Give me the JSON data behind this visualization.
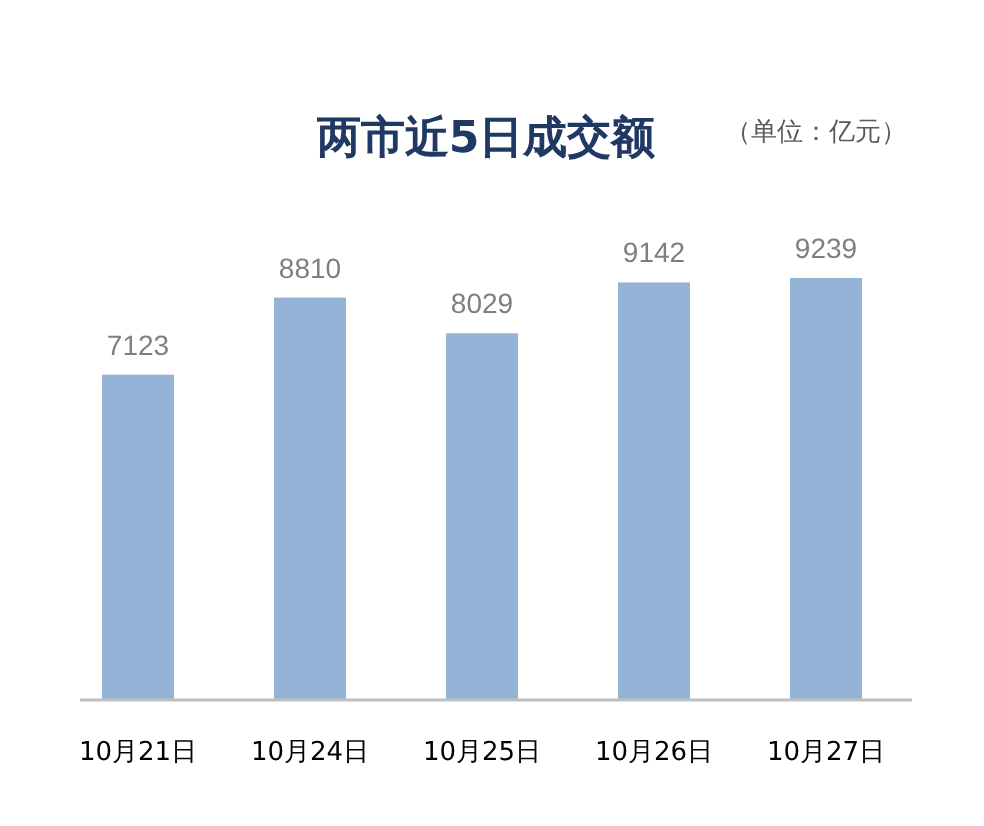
{
  "chart_data": {
    "type": "bar",
    "title": "两市近5日成交额",
    "subtitle": "（单位：亿元）",
    "categories": [
      "10月21日",
      "10月24日",
      "10月25日",
      "10月26日",
      "10月27日"
    ],
    "values": [
      7123,
      8810,
      8029,
      9142,
      9239
    ],
    "color": "#95b3d7",
    "data_labels": true
  }
}
